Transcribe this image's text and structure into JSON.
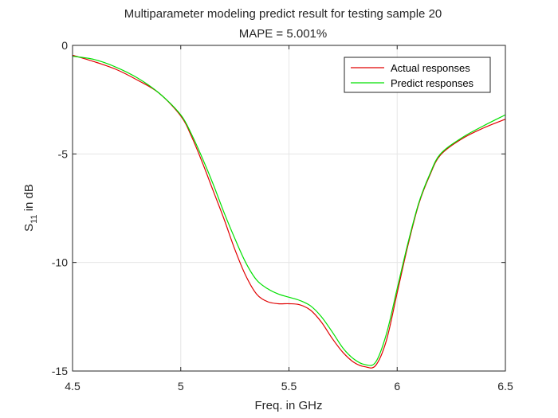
{
  "chart_data": {
    "type": "line",
    "title": "Multiparameter modeling predict result for testing sample 20",
    "subtitle": "MAPE = 5.001%",
    "xlabel": "Freq. in GHz",
    "ylabel": {
      "base": "S",
      "sub": "11",
      "rest": " in dB"
    },
    "xlim": [
      4.5,
      6.5
    ],
    "ylim": [
      -15,
      0
    ],
    "xticks": [
      4.5,
      5,
      5.5,
      6,
      6.5
    ],
    "xtick_labels": [
      "4.5",
      "5",
      "5.5",
      "6",
      "6.5"
    ],
    "yticks": [
      -15,
      -10,
      -5,
      0
    ],
    "ytick_labels": [
      "-15",
      "-10",
      "-5",
      "0"
    ],
    "grid": true,
    "legend_position": "top-right",
    "series": [
      {
        "name": "Actual responses",
        "color": "#e00000",
        "x": [
          4.5,
          4.6,
          4.7,
          4.8,
          4.9,
          5.0,
          5.05,
          5.1,
          5.15,
          5.2,
          5.25,
          5.3,
          5.35,
          5.4,
          5.45,
          5.5,
          5.55,
          5.6,
          5.65,
          5.7,
          5.75,
          5.8,
          5.85,
          5.9,
          5.95,
          6.0,
          6.05,
          6.1,
          6.15,
          6.2,
          6.3,
          6.4,
          6.5
        ],
        "y": [
          -0.45,
          -0.75,
          -1.1,
          -1.6,
          -2.2,
          -3.25,
          -4.2,
          -5.4,
          -6.7,
          -8.0,
          -9.4,
          -10.6,
          -11.45,
          -11.8,
          -11.9,
          -11.9,
          -11.95,
          -12.2,
          -12.75,
          -13.5,
          -14.15,
          -14.6,
          -14.8,
          -14.75,
          -13.6,
          -11.4,
          -9.2,
          -7.3,
          -6.0,
          -5.05,
          -4.3,
          -3.8,
          -3.4
        ]
      },
      {
        "name": "Predict responses",
        "color": "#00e000",
        "x": [
          4.5,
          4.6,
          4.7,
          4.8,
          4.9,
          5.0,
          5.05,
          5.1,
          5.15,
          5.2,
          5.25,
          5.3,
          5.35,
          5.4,
          5.45,
          5.5,
          5.55,
          5.6,
          5.65,
          5.7,
          5.75,
          5.8,
          5.85,
          5.9,
          5.95,
          6.0,
          6.05,
          6.1,
          6.15,
          6.2,
          6.3,
          6.4,
          6.5
        ],
        "y": [
          -0.5,
          -0.65,
          -1.0,
          -1.5,
          -2.2,
          -3.2,
          -4.1,
          -5.2,
          -6.4,
          -7.7,
          -8.9,
          -10.0,
          -10.8,
          -11.2,
          -11.45,
          -11.6,
          -11.75,
          -12.0,
          -12.5,
          -13.2,
          -13.95,
          -14.45,
          -14.7,
          -14.6,
          -13.3,
          -11.2,
          -9.1,
          -7.25,
          -5.95,
          -5.0,
          -4.25,
          -3.7,
          -3.2
        ]
      }
    ]
  }
}
